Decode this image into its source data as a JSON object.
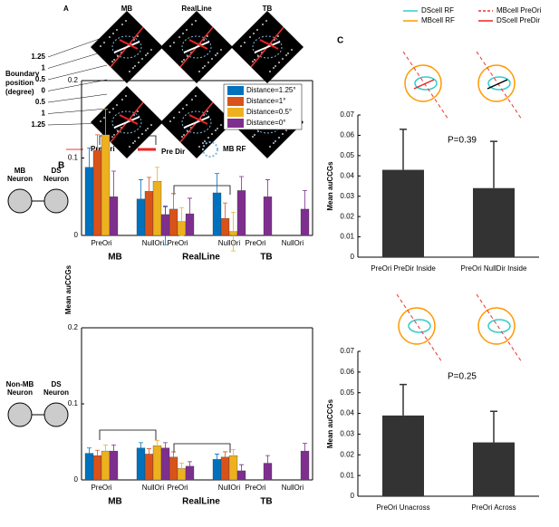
{
  "panel_a": {
    "letter": "A",
    "columns": [
      "MB",
      "RealLine",
      "TB"
    ],
    "positions": [
      "1.25",
      "1",
      "0.5",
      "0",
      "0.5",
      "1",
      "1.25"
    ],
    "position_label": "Boundary position (degree)",
    "legend": [
      "Pre Ori",
      "Pre Dir",
      "MB RF"
    ]
  },
  "panel_b": {
    "letter": "B",
    "neurons_top": [
      "MB Neuron",
      "DS Neuron"
    ],
    "neurons_bottom": [
      "Non-MB Neuron",
      "DS Neuron"
    ],
    "asterisk": "*"
  },
  "panel_c": {
    "letter": "C",
    "legend": [
      "DScell RF",
      "MBcell RF",
      "MBcell PreOri",
      "DScell PreDir"
    ]
  },
  "chart_data": [
    {
      "type": "grouped_bar",
      "ylabel": "Mean auCCGs",
      "categories": [
        "PreOri",
        "NullOri",
        "PreOri",
        "NullOri",
        "PreOri",
        "NullOri"
      ],
      "groups": [
        "MB",
        "RealLine",
        "TB"
      ],
      "ylim": [
        0,
        0.2
      ],
      "yticks": [
        0,
        0.1,
        0.2
      ],
      "series": [
        {
          "name": "Distance=1.25°",
          "color": "#0072bd",
          "values": [
            0.088,
            0.047,
            0.013,
            0.055,
            null,
            null
          ],
          "errors": [
            0.025,
            0.025,
            0.025,
            0.025,
            null,
            null
          ]
        },
        {
          "name": "Distance=1°",
          "color": "#d95319",
          "values": [
            0.11,
            0.057,
            0.034,
            0.022,
            null,
            null
          ],
          "errors": [
            0.02,
            0.018,
            0.02,
            0.02,
            null,
            null
          ]
        },
        {
          "name": "Distance=0.5°",
          "color": "#edb120",
          "values": [
            0.13,
            0.07,
            0.018,
            0.005,
            null,
            null
          ],
          "errors": [
            0.033,
            0.018,
            0.018,
            0.025,
            null,
            null
          ]
        },
        {
          "name": "Distance=0°",
          "color": "#7e2f8e",
          "values": [
            0.05,
            0.027,
            0.028,
            0.058,
            0.05,
            0.034
          ],
          "errors": [
            0.033,
            0.01,
            0.02,
            0.018,
            0.022,
            0.024
          ]
        }
      ]
    },
    {
      "type": "grouped_bar",
      "categories": [
        "PreOri",
        "NullOri",
        "PreOri",
        "NullOri",
        "PreOri",
        "NullOri"
      ],
      "groups": [
        "MB",
        "RealLine",
        "TB"
      ],
      "ylim": [
        0,
        0.2
      ],
      "yticks": [
        0,
        0.1,
        0.2
      ],
      "series": [
        {
          "values": [
            0.035,
            0.042,
            0.022,
            0.027,
            null,
            null
          ],
          "errors": [
            0.007,
            0.007,
            0.007,
            0.007,
            null,
            null
          ]
        },
        {
          "values": [
            0.032,
            0.034,
            0.03,
            0.03,
            null,
            null
          ],
          "errors": [
            0.007,
            0.007,
            0.007,
            0.007,
            null,
            null
          ]
        },
        {
          "values": [
            0.038,
            0.045,
            0.015,
            0.032,
            null,
            null
          ],
          "errors": [
            0.008,
            0.007,
            0.007,
            0.008,
            null,
            null
          ]
        },
        {
          "values": [
            0.038,
            0.042,
            0.018,
            0.012,
            0.022,
            0.038
          ],
          "errors": [
            0.008,
            0.007,
            0.006,
            0.008,
            0.01,
            0.01
          ]
        }
      ]
    },
    {
      "type": "bar",
      "ylabel": "Mean auCCGs",
      "annotation": "P=0.39",
      "categories": [
        "PreOri PreDir Inside",
        "PreOri NullDir Inside"
      ],
      "values": [
        0.043,
        0.034
      ],
      "errors": [
        0.02,
        0.023
      ],
      "color": "#333333",
      "ylim": [
        0,
        0.07
      ],
      "yticks": [
        0,
        0.01,
        0.02,
        0.03,
        0.04,
        0.05,
        0.06,
        0.07
      ]
    },
    {
      "type": "bar",
      "ylabel": "Mean auCCGs",
      "annotation": "P=0.25",
      "categories": [
        "PreOri Unacross",
        "PreOri Across"
      ],
      "values": [
        0.039,
        0.026
      ],
      "errors": [
        0.015,
        0.015
      ],
      "color": "#333333",
      "ylim": [
        0,
        0.07
      ],
      "yticks": [
        0,
        0.01,
        0.02,
        0.03,
        0.04,
        0.05,
        0.06,
        0.07
      ]
    }
  ]
}
